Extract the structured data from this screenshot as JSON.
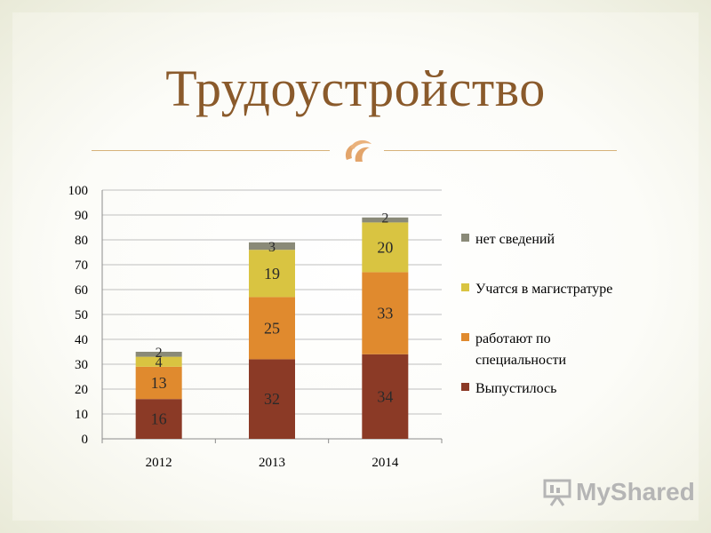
{
  "slide": {
    "title": "Трудоустройство"
  },
  "watermark": {
    "text": "MyShared",
    "icon": "presentation-board-icon"
  },
  "colors": {
    "background": "#fbfbf6",
    "title": "#8a5a2b",
    "rule": "#d7b27a",
    "ornament": "#e3a56b"
  },
  "chart_data": {
    "type": "bar",
    "stacked": true,
    "categories": [
      "2012",
      "2013",
      "2014"
    ],
    "ylim": [
      0,
      100
    ],
    "yticks": [
      0,
      10,
      20,
      30,
      40,
      50,
      60,
      70,
      80,
      90,
      100
    ],
    "grid": true,
    "legend_position": "right",
    "series": [
      {
        "name": "Выпустилось",
        "values": [
          16,
          32,
          34
        ],
        "color": "#8b3a26"
      },
      {
        "name": "работают по специальности",
        "values": [
          13,
          25,
          33
        ],
        "color": "#e08a2e"
      },
      {
        "name": "Учатся в магистратуре",
        "values": [
          4,
          19,
          20
        ],
        "color": "#d9c441"
      },
      {
        "name": "нет сведений",
        "values": [
          2,
          3,
          2
        ],
        "color": "#8a8a78"
      }
    ],
    "legend_order": [
      "нет сведений",
      "Учатся в магистратуре",
      "работают по специальности",
      "Выпустилось"
    ]
  }
}
